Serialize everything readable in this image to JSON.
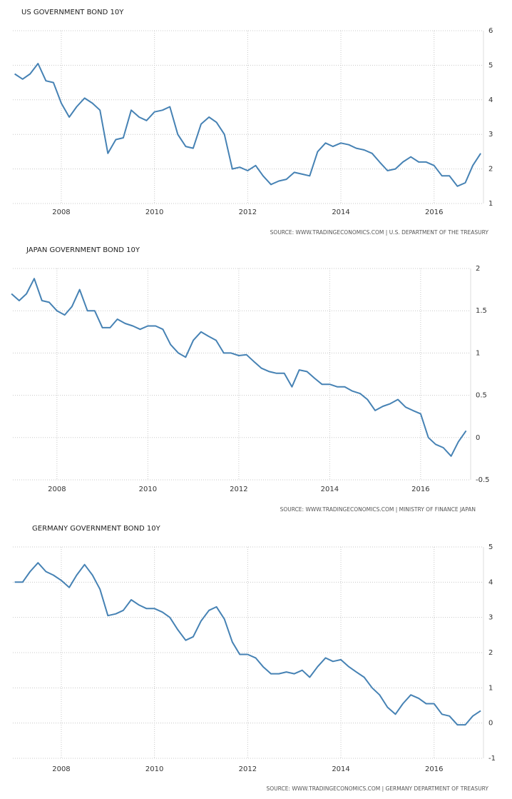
{
  "chart_data": [
    {
      "type": "line",
      "title": "US GOVERNMENT BOND 10Y",
      "source": "SOURCE: WWW.TRADINGECONOMICS.COM | U.S. DEPARTMENT OF THE TREASURY",
      "color": "#4682b4",
      "grid": true,
      "xlim": [
        2006.96,
        2017.06
      ],
      "xticks": [
        2008,
        2010,
        2012,
        2014,
        2016
      ],
      "ylim": [
        1,
        6
      ],
      "yticks": [
        1,
        2,
        3,
        4,
        5,
        6
      ],
      "x": [
        2007.0,
        2007.17,
        2007.33,
        2007.5,
        2007.67,
        2007.83,
        2008.0,
        2008.17,
        2008.33,
        2008.5,
        2008.67,
        2008.83,
        2009.0,
        2009.17,
        2009.33,
        2009.5,
        2009.67,
        2009.83,
        2010.0,
        2010.17,
        2010.33,
        2010.5,
        2010.67,
        2010.83,
        2011.0,
        2011.17,
        2011.33,
        2011.5,
        2011.67,
        2011.83,
        2012.0,
        2012.17,
        2012.33,
        2012.5,
        2012.67,
        2012.83,
        2013.0,
        2013.17,
        2013.33,
        2013.5,
        2013.67,
        2013.83,
        2014.0,
        2014.17,
        2014.33,
        2014.5,
        2014.67,
        2014.83,
        2015.0,
        2015.17,
        2015.33,
        2015.5,
        2015.67,
        2015.83,
        2016.0,
        2016.17,
        2016.33,
        2016.5,
        2016.67,
        2016.83,
        2017.0
      ],
      "values": [
        4.75,
        4.6,
        4.75,
        5.05,
        4.55,
        4.5,
        3.9,
        3.5,
        3.8,
        4.05,
        3.9,
        3.7,
        2.45,
        2.85,
        2.9,
        3.7,
        3.5,
        3.4,
        3.65,
        3.7,
        3.8,
        3.0,
        2.65,
        2.6,
        3.3,
        3.5,
        3.35,
        3.0,
        2.0,
        2.05,
        1.95,
        2.1,
        1.8,
        1.55,
        1.65,
        1.7,
        1.9,
        1.85,
        1.8,
        2.5,
        2.75,
        2.65,
        2.75,
        2.7,
        2.6,
        2.55,
        2.45,
        2.2,
        1.95,
        2.0,
        2.2,
        2.35,
        2.2,
        2.2,
        2.1,
        1.8,
        1.8,
        1.5,
        1.6,
        2.1,
        2.45
      ]
    },
    {
      "type": "line",
      "title": "JAPAN GOVERNMENT BOND 10Y",
      "source": "SOURCE: WWW.TRADINGECONOMICS.COM | MINISTRY OF FINANCE JAPAN",
      "color": "#4682b4",
      "grid": true,
      "xlim": [
        2007.03,
        2017.1
      ],
      "xticks": [
        2008,
        2010,
        2012,
        2014,
        2016
      ],
      "ylim": [
        -0.5,
        2
      ],
      "yticks": [
        -0.5,
        0,
        0.5,
        1,
        1.5,
        2
      ],
      "x": [
        2007.0,
        2007.17,
        2007.33,
        2007.5,
        2007.67,
        2007.83,
        2008.0,
        2008.17,
        2008.33,
        2008.5,
        2008.67,
        2008.83,
        2009.0,
        2009.17,
        2009.33,
        2009.5,
        2009.67,
        2009.83,
        2010.0,
        2010.17,
        2010.33,
        2010.5,
        2010.67,
        2010.83,
        2011.0,
        2011.17,
        2011.33,
        2011.5,
        2011.67,
        2011.83,
        2012.0,
        2012.17,
        2012.33,
        2012.5,
        2012.67,
        2012.83,
        2013.0,
        2013.17,
        2013.33,
        2013.5,
        2013.67,
        2013.83,
        2014.0,
        2014.17,
        2014.33,
        2014.5,
        2014.67,
        2014.83,
        2015.0,
        2015.17,
        2015.33,
        2015.5,
        2015.67,
        2015.83,
        2016.0,
        2016.17,
        2016.33,
        2016.5,
        2016.67,
        2016.83,
        2017.0
      ],
      "values": [
        1.7,
        1.62,
        1.7,
        1.88,
        1.62,
        1.6,
        1.5,
        1.45,
        1.55,
        1.75,
        1.5,
        1.5,
        1.3,
        1.3,
        1.4,
        1.35,
        1.32,
        1.28,
        1.32,
        1.32,
        1.28,
        1.1,
        1.0,
        0.95,
        1.15,
        1.25,
        1.2,
        1.15,
        1.0,
        1.0,
        0.97,
        0.98,
        0.9,
        0.82,
        0.78,
        0.76,
        0.76,
        0.6,
        0.8,
        0.78,
        0.7,
        0.63,
        0.63,
        0.6,
        0.6,
        0.55,
        0.52,
        0.45,
        0.32,
        0.37,
        0.4,
        0.45,
        0.36,
        0.32,
        0.28,
        0.0,
        -0.08,
        -0.12,
        -0.22,
        -0.05,
        0.08
      ]
    },
    {
      "type": "line",
      "title": "GERMANY GOVERNMENT BOND 10Y",
      "source": "SOURCE: WWW.TRADINGECONOMICS.COM | GERMANY DEPARTMENT OF TREASURY",
      "color": "#4682b4",
      "grid": true,
      "xlim": [
        2006.96,
        2017.06
      ],
      "xticks": [
        2008,
        2010,
        2012,
        2014,
        2016
      ],
      "ylim": [
        -1,
        5
      ],
      "yticks": [
        -1,
        0,
        1,
        2,
        3,
        4,
        5
      ],
      "x": [
        2007.0,
        2007.17,
        2007.33,
        2007.5,
        2007.67,
        2007.83,
        2008.0,
        2008.17,
        2008.33,
        2008.5,
        2008.67,
        2008.83,
        2009.0,
        2009.17,
        2009.33,
        2009.5,
        2009.67,
        2009.83,
        2010.0,
        2010.17,
        2010.33,
        2010.5,
        2010.67,
        2010.83,
        2011.0,
        2011.17,
        2011.33,
        2011.5,
        2011.67,
        2011.83,
        2012.0,
        2012.17,
        2012.33,
        2012.5,
        2012.67,
        2012.83,
        2013.0,
        2013.17,
        2013.33,
        2013.5,
        2013.67,
        2013.83,
        2014.0,
        2014.17,
        2014.33,
        2014.5,
        2014.67,
        2014.83,
        2015.0,
        2015.17,
        2015.33,
        2015.5,
        2015.67,
        2015.83,
        2016.0,
        2016.17,
        2016.33,
        2016.5,
        2016.67,
        2016.83,
        2017.0
      ],
      "values": [
        4.0,
        4.0,
        4.3,
        4.55,
        4.3,
        4.2,
        4.05,
        3.85,
        4.2,
        4.5,
        4.2,
        3.8,
        3.05,
        3.1,
        3.2,
        3.5,
        3.35,
        3.25,
        3.25,
        3.15,
        3.0,
        2.65,
        2.35,
        2.45,
        2.9,
        3.2,
        3.3,
        2.95,
        2.3,
        1.95,
        1.95,
        1.85,
        1.6,
        1.4,
        1.4,
        1.45,
        1.4,
        1.5,
        1.3,
        1.6,
        1.85,
        1.75,
        1.8,
        1.6,
        1.45,
        1.3,
        1.0,
        0.8,
        0.45,
        0.25,
        0.55,
        0.8,
        0.7,
        0.55,
        0.55,
        0.25,
        0.2,
        -0.05,
        -0.05,
        0.2,
        0.35
      ]
    }
  ]
}
